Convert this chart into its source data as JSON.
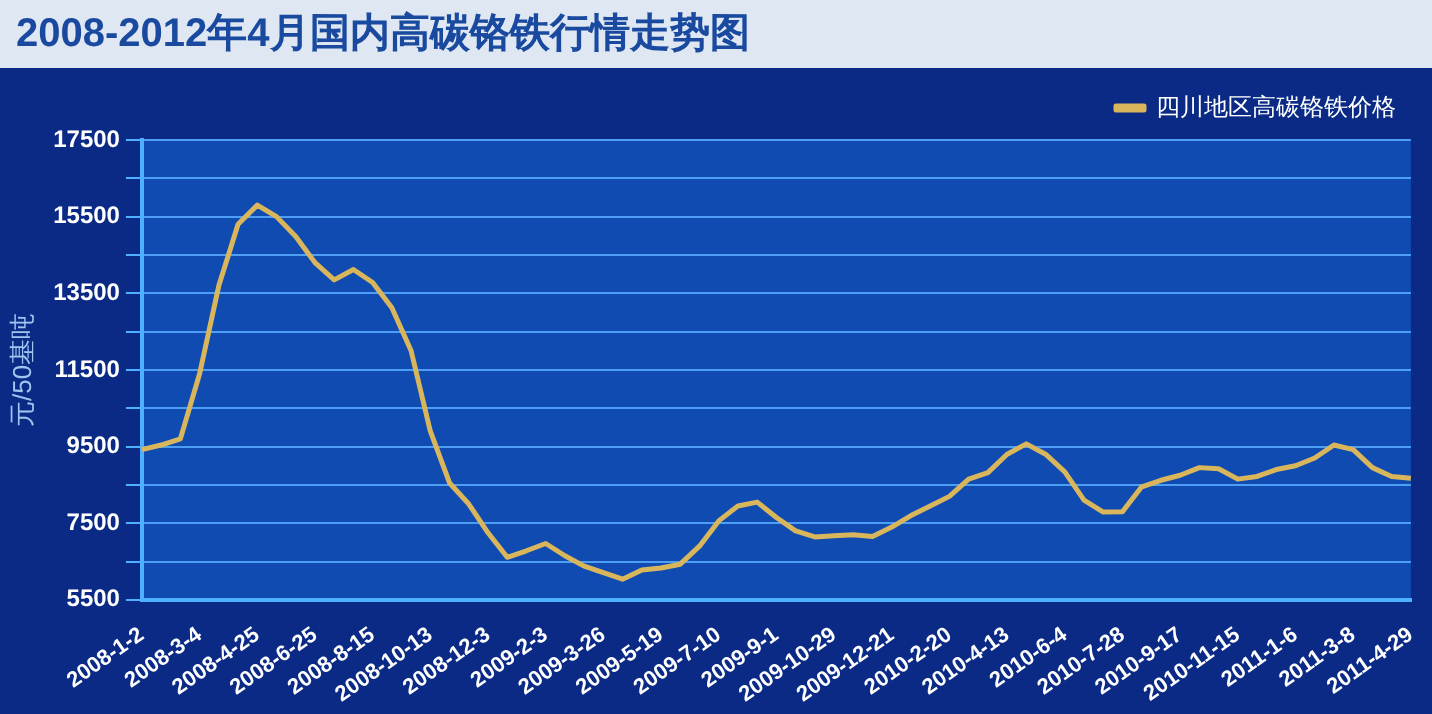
{
  "chart_data": {
    "type": "line",
    "title": "2008-2012年4月国内高碳铬铁行情走势图",
    "ylabel": "元/50基吨",
    "categories": [
      "2008-1-2",
      null,
      null,
      "2008-3-4",
      null,
      null,
      "2008-4-25",
      null,
      null,
      "2008-6-25",
      null,
      null,
      "2008-8-15",
      null,
      null,
      "2008-10-13",
      null,
      null,
      "2008-12-3",
      null,
      null,
      "2009-2-3",
      null,
      null,
      "2009-3-26",
      null,
      null,
      "2009-5-19",
      null,
      null,
      "2009-7-10",
      null,
      null,
      "2009-9-1",
      null,
      null,
      "2009-10-29",
      null,
      null,
      "2009-12-21",
      null,
      null,
      "2010-2-20",
      null,
      null,
      "2010-4-13",
      null,
      null,
      "2010-6-4",
      null,
      null,
      "2010-7-28",
      null,
      null,
      "2010-9-17",
      null,
      null,
      "2010-11-15",
      null,
      null,
      "2011-1-6",
      null,
      null,
      "2011-3-8",
      null,
      null,
      "2011-4-29"
    ],
    "series": [
      {
        "name": "四川地区高碳铬铁价格",
        "color": "#d9b65c",
        "values": [
          9420,
          9540,
          9700,
          11400,
          13700,
          15300,
          15800,
          15500,
          14980,
          14300,
          13850,
          14120,
          13780,
          13120,
          12000,
          9900,
          8550,
          8000,
          7250,
          6610,
          6780,
          6970,
          6650,
          6380,
          6210,
          6040,
          6280,
          6330,
          6430,
          6900,
          7560,
          7950,
          8050,
          7650,
          7300,
          7140,
          7170,
          7200,
          7150,
          7400,
          7700,
          7950,
          8200,
          8650,
          8820,
          9300,
          9570,
          9300,
          8840,
          8100,
          7790,
          7800,
          8450,
          8620,
          8750,
          8950,
          8920,
          8650,
          8720,
          8900,
          9000,
          9200,
          9540,
          9420,
          8950,
          8720,
          8670
        ]
      }
    ],
    "ylim": [
      5500,
      17500
    ],
    "yticks": [
      5500,
      {
        "value": 6500,
        "label": null
      },
      7500,
      {
        "value": 8500,
        "label": null
      },
      9500,
      {
        "value": 10500,
        "label": null
      },
      11500,
      {
        "value": 12500,
        "label": null
      },
      13500,
      {
        "value": 14500,
        "label": null
      },
      15500,
      {
        "value": 16500,
        "label": null
      },
      17500
    ],
    "grid": "y",
    "legend": "top right",
    "marker": "none",
    "line_style": "solid"
  }
}
